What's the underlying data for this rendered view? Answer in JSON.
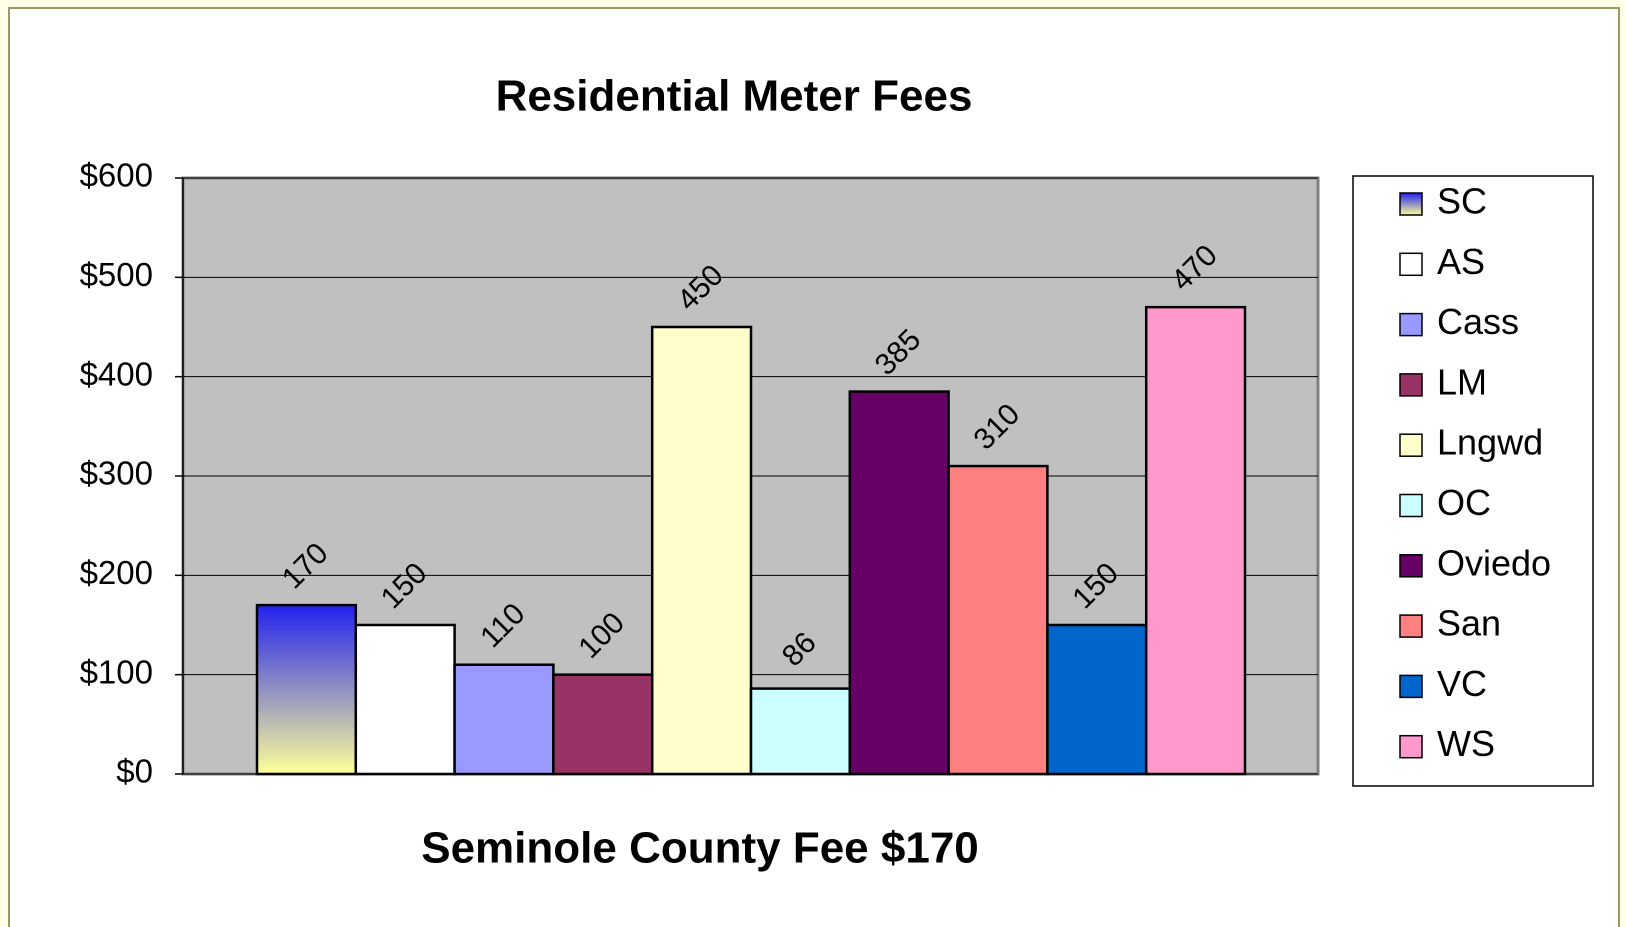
{
  "chart_data": {
    "type": "bar",
    "title": "Residential Meter Fees",
    "xlabel": "Seminole County Fee $170",
    "series": [
      {
        "name": "SC",
        "color": "#2222ee",
        "gradient_to": "#ffff99",
        "values": [
          170
        ]
      },
      {
        "name": "AS",
        "color": "#ffffff",
        "values": [
          150
        ]
      },
      {
        "name": "Cass",
        "color": "#9999ff",
        "values": [
          110
        ]
      },
      {
        "name": "LM",
        "color": "#993366",
        "values": [
          100
        ]
      },
      {
        "name": "Lngwd",
        "color": "#ffffcc",
        "values": [
          450
        ]
      },
      {
        "name": "OC",
        "color": "#ccffff",
        "values": [
          86
        ]
      },
      {
        "name": "Oviedo",
        "color": "#660066",
        "values": [
          385
        ]
      },
      {
        "name": "San",
        "color": "#ff8080",
        "values": [
          310
        ]
      },
      {
        "name": "VC",
        "color": "#0066cc",
        "values": [
          150
        ]
      },
      {
        "name": "WS",
        "color": "#ff99cc",
        "values": [
          470
        ]
      }
    ],
    "ylim": [
      0,
      600
    ],
    "yticks": [
      {
        "value": 0,
        "label": "$0"
      },
      {
        "value": 100,
        "label": "$100"
      },
      {
        "value": 200,
        "label": "$200"
      },
      {
        "value": 300,
        "label": "$300"
      },
      {
        "value": 400,
        "label": "$400"
      },
      {
        "value": 500,
        "label": "$500"
      },
      {
        "value": 600,
        "label": "$600"
      }
    ],
    "grid": true,
    "legend": "right"
  }
}
